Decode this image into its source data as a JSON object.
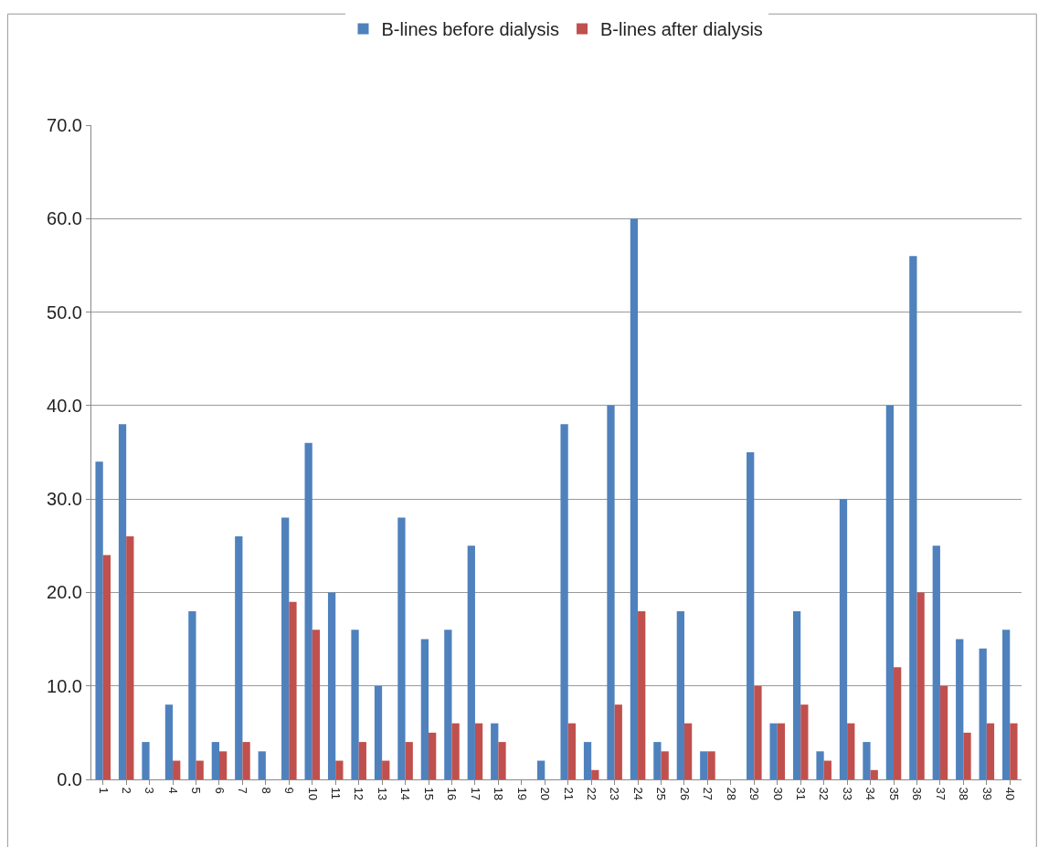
{
  "chart_data": {
    "type": "bar",
    "categories": [
      "1",
      "2",
      "3",
      "4",
      "5",
      "6",
      "7",
      "8",
      "9",
      "10",
      "11",
      "12",
      "13",
      "14",
      "15",
      "16",
      "17",
      "18",
      "19",
      "20",
      "21",
      "22",
      "23",
      "24",
      "25",
      "26",
      "27",
      "28",
      "29",
      "30",
      "31",
      "32",
      "33",
      "34",
      "35",
      "36",
      "37",
      "38",
      "39",
      "40"
    ],
    "series": [
      {
        "name": "B-lines before dialysis",
        "color": "#4f81bd",
        "values": [
          34,
          38,
          4,
          8,
          18,
          4,
          26,
          3,
          28,
          36,
          20,
          16,
          10,
          28,
          15,
          16,
          25,
          6,
          0,
          2,
          38,
          4,
          40,
          60,
          4,
          18,
          3,
          0,
          35,
          6,
          18,
          3,
          30,
          4,
          40,
          56,
          25,
          15,
          14,
          16
        ]
      },
      {
        "name": "B-lines after dialysis",
        "color": "#c0504d",
        "values": [
          24,
          26,
          0,
          2,
          2,
          3,
          4,
          0,
          19,
          16,
          2,
          4,
          2,
          4,
          5,
          6,
          6,
          4,
          0,
          0,
          6,
          1,
          8,
          18,
          3,
          6,
          3,
          0,
          10,
          6,
          8,
          2,
          6,
          1,
          12,
          20,
          10,
          5,
          6,
          6
        ]
      }
    ],
    "ylim": [
      0,
      70
    ],
    "yticks": [
      {
        "value": 0,
        "label": "0.0"
      },
      {
        "value": 10,
        "label": "10.0"
      },
      {
        "value": 20,
        "label": "20.0"
      },
      {
        "value": 30,
        "label": "30.0"
      },
      {
        "value": 40,
        "label": "40.0"
      },
      {
        "value": 50,
        "label": "50.0"
      },
      {
        "value": 60,
        "label": "60.0"
      },
      {
        "value": 70,
        "label": "70.0"
      }
    ],
    "grid": "y",
    "legend": "top"
  }
}
